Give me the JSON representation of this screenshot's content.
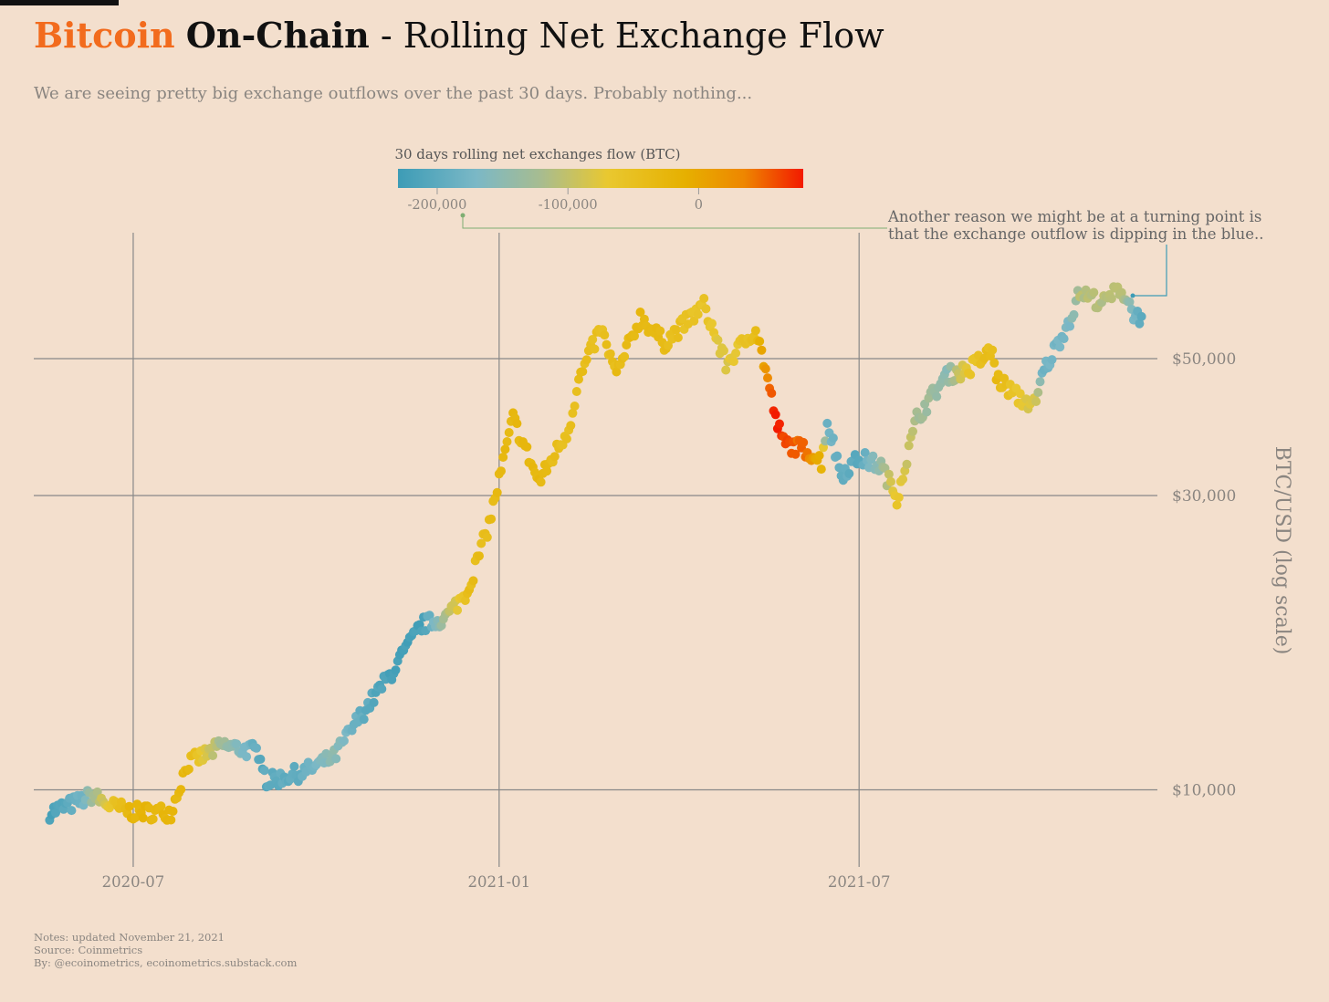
{
  "header": {
    "title_accent": "Bitcoin",
    "title_bold": "On-Chain",
    "title_rest": " - Rolling Net Exchange Flow",
    "subtitle": "We are seeing pretty big exchange outflows over the past 30 days. Probably nothing..."
  },
  "legend": {
    "title": "30 days rolling net exchanges flow (BTC)",
    "ticks": [
      {
        "value": -200000,
        "label": "-200,000"
      },
      {
        "value": -100000,
        "label": "-100,000"
      },
      {
        "value": 0,
        "label": "0"
      }
    ],
    "range": [
      -230000,
      80000
    ],
    "stops": [
      {
        "value": -230000,
        "color": "#3d9cb6"
      },
      {
        "value": -170000,
        "color": "#7bb8c6"
      },
      {
        "value": -120000,
        "color": "#a8bc8f"
      },
      {
        "value": -70000,
        "color": "#e9c830"
      },
      {
        "value": -10000,
        "color": "#e6b000"
      },
      {
        "value": 35000,
        "color": "#ee8600"
      },
      {
        "value": 80000,
        "color": "#f31a00"
      }
    ]
  },
  "annotation": {
    "line1": "Another reason we might be at a turning point is",
    "line2": "that the exchange outflow is dipping in the blue.."
  },
  "footer": {
    "notes": "Notes: updated November 21, 2021",
    "source": "Source: Coinmetrics",
    "by": "By: @ecoinometrics, ecoinometrics.substack.com"
  },
  "chart_data": {
    "type": "scatter",
    "title": "Bitcoin On-Chain - Rolling Net Exchange Flow",
    "ylabel": "BTC/USD (log scale)",
    "y_scale": "log",
    "x_range": [
      "2020-05-12",
      "2021-11-28"
    ],
    "ylim": [
      7500,
      80000
    ],
    "x_ticks": [
      {
        "value": "2020-07-01",
        "label": "2020-07"
      },
      {
        "value": "2021-01-01",
        "label": "2021-01"
      },
      {
        "value": "2021-07-01",
        "label": "2021-07"
      }
    ],
    "y_ticks": [
      {
        "value": 10000,
        "label": "$10,000"
      },
      {
        "value": 30000,
        "label": "$30,000"
      },
      {
        "value": 50000,
        "label": "$50,000"
      }
    ],
    "grid": true,
    "color_encoding": "30 days rolling net exchanges flow (BTC)",
    "anchors": [
      {
        "date": "2020-05-20",
        "price": 9200,
        "flow": -220000
      },
      {
        "date": "2020-06-05",
        "price": 9600,
        "flow": -180000
      },
      {
        "date": "2020-06-10",
        "price": 9800,
        "flow": -130000
      },
      {
        "date": "2020-06-20",
        "price": 9400,
        "flow": -60000
      },
      {
        "date": "2020-07-01",
        "price": 9200,
        "flow": -20000
      },
      {
        "date": "2020-07-20",
        "price": 9200,
        "flow": -30000
      },
      {
        "date": "2020-07-28",
        "price": 11000,
        "flow": -30000
      },
      {
        "date": "2020-08-15",
        "price": 11800,
        "flow": -130000
      },
      {
        "date": "2020-09-03",
        "price": 11500,
        "flow": -200000
      },
      {
        "date": "2020-09-06",
        "price": 10300,
        "flow": -200000
      },
      {
        "date": "2020-09-25",
        "price": 10700,
        "flow": -190000
      },
      {
        "date": "2020-10-10",
        "price": 11300,
        "flow": -150000
      },
      {
        "date": "2020-10-22",
        "price": 13000,
        "flow": -190000
      },
      {
        "date": "2020-11-08",
        "price": 15500,
        "flow": -220000
      },
      {
        "date": "2020-11-23",
        "price": 18500,
        "flow": -220000
      },
      {
        "date": "2020-12-05",
        "price": 19000,
        "flow": -120000
      },
      {
        "date": "2020-12-16",
        "price": 21000,
        "flow": -40000
      },
      {
        "date": "2020-12-27",
        "price": 27000,
        "flow": -40000
      },
      {
        "date": "2021-01-08",
        "price": 40000,
        "flow": -30000
      },
      {
        "date": "2021-01-21",
        "price": 31500,
        "flow": -30000
      },
      {
        "date": "2021-02-05",
        "price": 38500,
        "flow": -50000
      },
      {
        "date": "2021-02-10",
        "price": 46000,
        "flow": -40000
      },
      {
        "date": "2021-02-21",
        "price": 56000,
        "flow": -50000
      },
      {
        "date": "2021-03-01",
        "price": 47000,
        "flow": -40000
      },
      {
        "date": "2021-03-13",
        "price": 58500,
        "flow": -30000
      },
      {
        "date": "2021-03-25",
        "price": 53000,
        "flow": -40000
      },
      {
        "date": "2021-04-14",
        "price": 61000,
        "flow": -60000
      },
      {
        "date": "2021-04-25",
        "price": 49000,
        "flow": -80000
      },
      {
        "date": "2021-05-10",
        "price": 56000,
        "flow": -40000
      },
      {
        "date": "2021-05-15",
        "price": 48000,
        "flow": 20000
      },
      {
        "date": "2021-05-20",
        "price": 40000,
        "flow": 80000
      },
      {
        "date": "2021-05-24",
        "price": 36500,
        "flow": 65000
      },
      {
        "date": "2021-06-05",
        "price": 35500,
        "flow": 40000
      },
      {
        "date": "2021-06-12",
        "price": 34000,
        "flow": -20000
      },
      {
        "date": "2021-06-15",
        "price": 39500,
        "flow": -180000
      },
      {
        "date": "2021-06-22",
        "price": 32500,
        "flow": -190000
      },
      {
        "date": "2021-07-01",
        "price": 34500,
        "flow": -200000
      },
      {
        "date": "2021-07-12",
        "price": 33500,
        "flow": -140000
      },
      {
        "date": "2021-07-20",
        "price": 29800,
        "flow": -60000
      },
      {
        "date": "2021-07-30",
        "price": 40000,
        "flow": -120000
      },
      {
        "date": "2021-08-14",
        "price": 47000,
        "flow": -150000
      },
      {
        "date": "2021-08-25",
        "price": 48000,
        "flow": -60000
      },
      {
        "date": "2021-09-06",
        "price": 51500,
        "flow": -40000
      },
      {
        "date": "2021-09-08",
        "price": 46500,
        "flow": -30000
      },
      {
        "date": "2021-09-20",
        "price": 43000,
        "flow": -70000
      },
      {
        "date": "2021-09-28",
        "price": 42000,
        "flow": -90000
      },
      {
        "date": "2021-10-01",
        "price": 47000,
        "flow": -180000
      },
      {
        "date": "2021-10-15",
        "price": 58000,
        "flow": -170000
      },
      {
        "date": "2021-10-20",
        "price": 64000,
        "flow": -110000
      },
      {
        "date": "2021-11-01",
        "price": 61500,
        "flow": -110000
      },
      {
        "date": "2021-11-09",
        "price": 65000,
        "flow": -110000
      },
      {
        "date": "2021-11-12",
        "price": 63000,
        "flow": -120000
      },
      {
        "date": "2021-11-17",
        "price": 58500,
        "flow": -180000
      },
      {
        "date": "2021-11-20",
        "price": 58500,
        "flow": -200000
      }
    ]
  }
}
